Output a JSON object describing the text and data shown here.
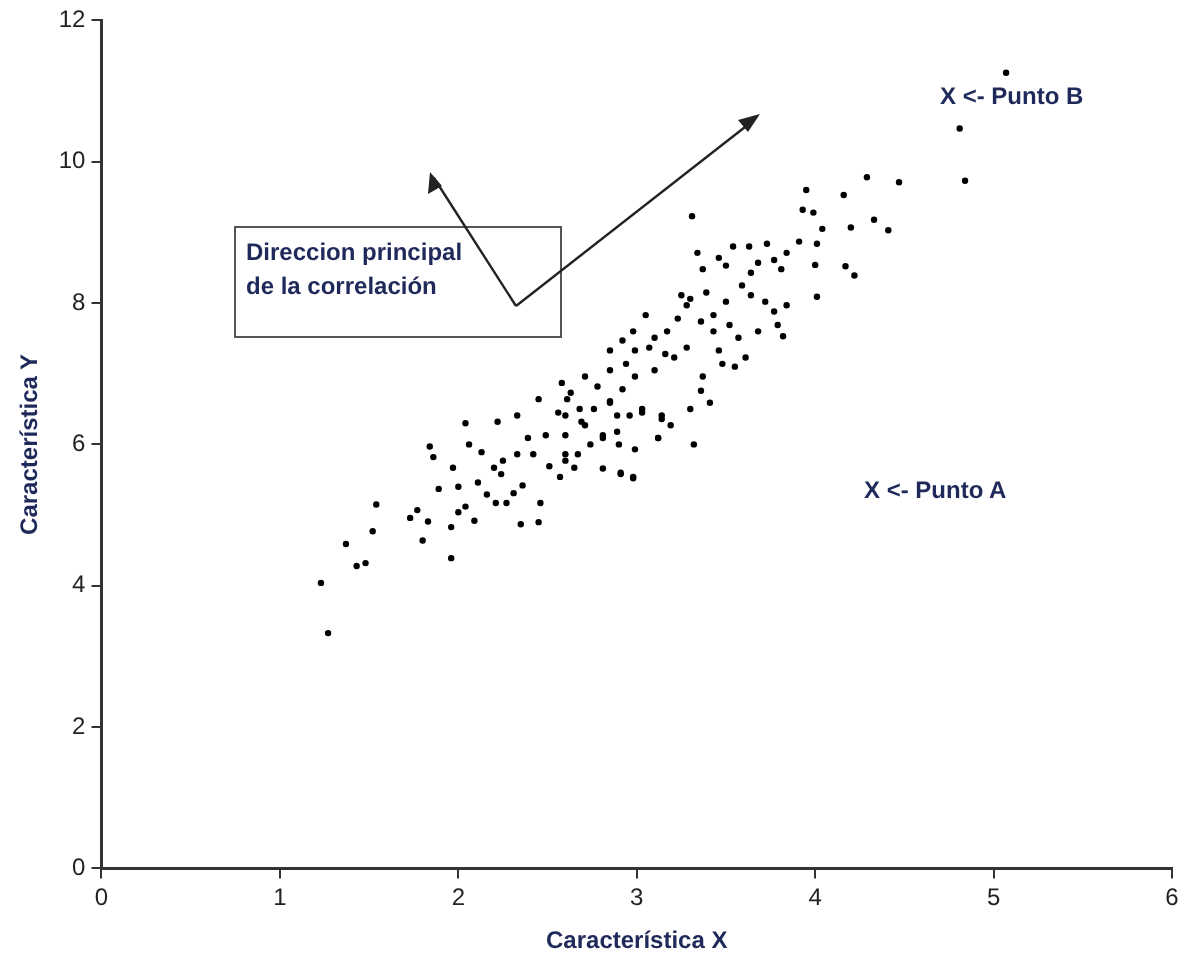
{
  "chart_data": {
    "type": "scatter",
    "xlabel": "Característica X",
    "ylabel": "Característica Y",
    "xlim": [
      0,
      6
    ],
    "ylim": [
      0,
      12
    ],
    "xticks": [
      0,
      1,
      2,
      3,
      4,
      5,
      6
    ],
    "yticks": [
      0,
      2,
      4,
      6,
      8,
      10,
      12
    ],
    "marker": "circle",
    "grid": false,
    "legend": false,
    "annotations": [
      "Direccion principal de la correlación",
      "X <- Punto A",
      "X <- Punto B"
    ],
    "series": [
      {
        "color": "#000000",
        "x": [
          1.27,
          1.23,
          1.37,
          1.43,
          1.48,
          1.54,
          1.52,
          1.73,
          1.77,
          1.8,
          1.83,
          1.96,
          1.89,
          1.84,
          1.86,
          1.97,
          1.96,
          2.0,
          2.0,
          2.04,
          2.09,
          2.04,
          2.06,
          2.11,
          2.16,
          2.21,
          2.27,
          2.24,
          2.31,
          2.36,
          2.35,
          2.45,
          2.46,
          2.13,
          2.2,
          2.25,
          2.33,
          2.42,
          2.51,
          2.22,
          2.33,
          2.39,
          2.49,
          2.6,
          2.65,
          2.57,
          2.81,
          2.91,
          2.98,
          2.9,
          2.99,
          3.12,
          2.6,
          2.71,
          2.81,
          2.68,
          2.89,
          3.03,
          2.45,
          2.61,
          2.85,
          3.14,
          3.32,
          3.12,
          2.98,
          2.91,
          3.41,
          3.36,
          3.3,
          3.19,
          3.14,
          3.03,
          2.96,
          2.89,
          2.81,
          2.74,
          2.67,
          2.6,
          2.6,
          2.69,
          2.76,
          2.85,
          2.92,
          2.99,
          3.1,
          3.21,
          3.28,
          3.37,
          3.43,
          3.52,
          3.61,
          3.55,
          3.48,
          3.46,
          3.57,
          3.68,
          3.79,
          3.77,
          3.72,
          3.64,
          3.59,
          3.64,
          3.68,
          3.77,
          3.84,
          3.81,
          3.5,
          3.43,
          3.36,
          3.28,
          3.25,
          3.37,
          3.34,
          3.46,
          3.5,
          3.54,
          3.63,
          3.31,
          3.73,
          3.05,
          3.1,
          3.17,
          3.16,
          2.99,
          2.94,
          2.85,
          2.78,
          2.71,
          2.63,
          2.58,
          2.56,
          2.85,
          2.92,
          2.98,
          3.07,
          3.3,
          3.23,
          3.39,
          3.84,
          3.82,
          5.07,
          4.81,
          4.84,
          4.29,
          4.47,
          3.95,
          4.16,
          3.93,
          3.99,
          4.04,
          4.2,
          4.33,
          4.41,
          3.91,
          4.01,
          4.0,
          4.17,
          4.22,
          4.01
        ],
        "values": [
          3.33,
          4.04,
          4.59,
          4.28,
          4.32,
          5.15,
          4.77,
          4.96,
          5.07,
          4.64,
          4.91,
          4.39,
          5.37,
          5.97,
          5.82,
          5.67,
          4.83,
          5.4,
          5.04,
          5.12,
          4.92,
          6.3,
          6.0,
          5.46,
          5.29,
          5.17,
          5.17,
          5.58,
          5.31,
          5.42,
          4.87,
          4.9,
          5.17,
          5.89,
          5.67,
          5.77,
          5.86,
          5.86,
          5.69,
          6.32,
          6.41,
          6.09,
          6.13,
          5.86,
          5.67,
          5.54,
          5.66,
          5.58,
          5.52,
          6.0,
          5.93,
          6.09,
          6.41,
          6.27,
          6.09,
          6.5,
          6.41,
          6.45,
          6.64,
          6.64,
          6.61,
          6.36,
          6.0,
          6.09,
          5.54,
          5.6,
          6.59,
          6.76,
          6.5,
          6.27,
          6.41,
          6.5,
          6.41,
          6.18,
          6.13,
          6.0,
          5.86,
          5.77,
          6.13,
          6.32,
          6.5,
          6.59,
          6.78,
          6.96,
          7.05,
          7.23,
          7.37,
          6.96,
          7.6,
          7.69,
          7.23,
          7.1,
          7.14,
          7.33,
          7.51,
          7.6,
          7.69,
          7.88,
          8.02,
          8.11,
          8.25,
          8.43,
          8.57,
          8.61,
          8.71,
          8.48,
          8.02,
          7.83,
          7.74,
          7.97,
          8.11,
          8.48,
          8.71,
          8.64,
          8.53,
          8.8,
          8.8,
          9.23,
          8.84,
          7.83,
          7.51,
          7.6,
          7.28,
          7.33,
          7.14,
          7.05,
          6.82,
          6.96,
          6.73,
          6.87,
          6.45,
          7.33,
          7.47,
          7.6,
          7.37,
          8.06,
          7.78,
          8.15,
          7.97,
          7.53,
          11.26,
          10.47,
          9.73,
          9.78,
          9.71,
          9.6,
          9.53,
          9.32,
          9.28,
          9.05,
          9.07,
          9.18,
          9.03,
          8.87,
          8.84,
          8.54,
          8.52,
          8.39,
          8.09
        ]
      }
    ]
  }
}
